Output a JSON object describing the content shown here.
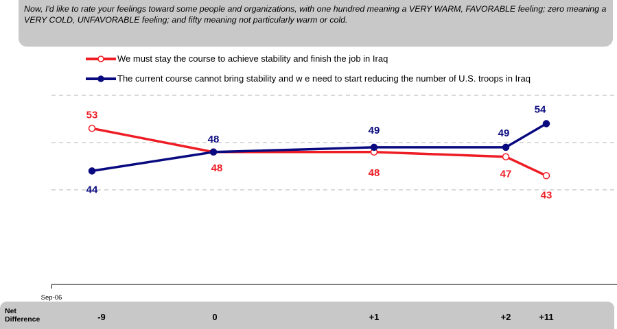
{
  "question": "Now, I'd like to rate your feelings toward some people and organizations, with one hundred meaning a VERY WARM, FAVORABLE feeling; zero meaning a VERY COLD, UNFAVORABLE feeling; and fifty meaning not particularly warm or cold.",
  "net_difference": {
    "label_line1": "Net",
    "label_line2": "Difference",
    "values": [
      "-9",
      "0",
      "+1",
      "+2",
      "+11"
    ]
  },
  "chart_data": {
    "type": "line",
    "x": [
      "Sep-06",
      "",
      "",
      "",
      ""
    ],
    "x_tick_label": "Sep-06",
    "ylim": [
      20,
      70
    ],
    "grid": true,
    "legend_position": "top",
    "series": [
      {
        "name": "We must stay the course to achieve stability and finish the job in Iraq",
        "color": "#ee1c24",
        "marker": "open-circle",
        "values": [
          53,
          48,
          48,
          47,
          43
        ]
      },
      {
        "name": "The current course cannot bring stability and w e need to start reducing the number of U.S. troops in Iraq",
        "color": "#0a0a80",
        "marker": "filled-circle",
        "values": [
          44,
          48,
          49,
          49,
          54
        ]
      }
    ]
  }
}
